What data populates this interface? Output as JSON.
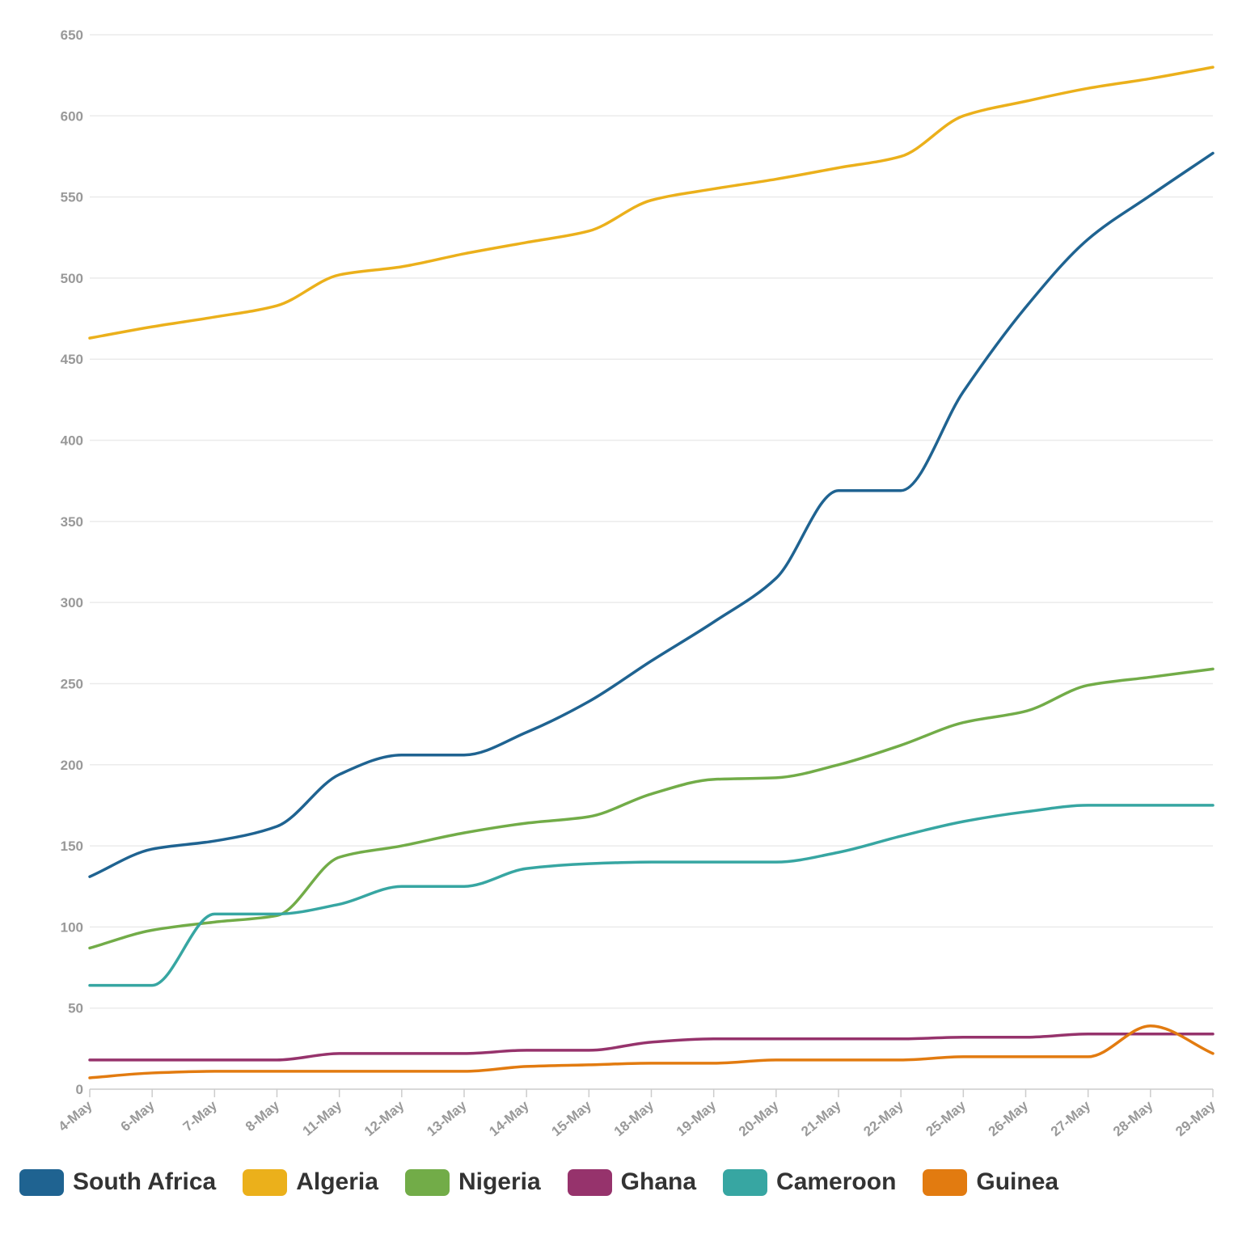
{
  "chart_data": {
    "type": "line",
    "categories": [
      "4-May",
      "6-May",
      "7-May",
      "8-May",
      "11-May",
      "12-May",
      "13-May",
      "14-May",
      "15-May",
      "18-May",
      "19-May",
      "20-May",
      "21-May",
      "22-May",
      "25-May",
      "26-May",
      "27-May",
      "28-May",
      "29-May"
    ],
    "yticks": [
      0,
      50,
      100,
      150,
      200,
      250,
      300,
      350,
      400,
      450,
      500,
      550,
      600,
      650
    ],
    "ylim": [
      0,
      650
    ],
    "legend_position": "bottom",
    "grid": true,
    "series": [
      {
        "name": "South Africa",
        "color": "#1f6391",
        "values": [
          131,
          148,
          153,
          162,
          194,
          206,
          206,
          220,
          239,
          264,
          288,
          315,
          369,
          369,
          430,
          482,
          524,
          551,
          577
        ]
      },
      {
        "name": "Algeria",
        "color": "#ebb01b",
        "values": [
          463,
          470,
          476,
          483,
          502,
          507,
          515,
          522,
          529,
          548,
          555,
          561,
          568,
          575,
          600,
          609,
          617,
          623,
          630
        ]
      },
      {
        "name": "Nigeria",
        "color": "#72ac48",
        "values": [
          87,
          98,
          103,
          107,
          143,
          150,
          158,
          164,
          168,
          182,
          191,
          192,
          200,
          212,
          226,
          233,
          249,
          254,
          259
        ]
      },
      {
        "name": "Ghana",
        "color": "#96336c",
        "values": [
          18,
          18,
          18,
          18,
          22,
          22,
          22,
          24,
          24,
          29,
          31,
          31,
          31,
          31,
          32,
          32,
          34,
          34,
          34
        ]
      },
      {
        "name": "Cameroon",
        "color": "#37a6a2",
        "values": [
          64,
          64,
          108,
          108,
          114,
          125,
          125,
          136,
          139,
          140,
          140,
          140,
          146,
          156,
          165,
          171,
          175,
          175,
          175
        ]
      },
      {
        "name": "Guinea",
        "color": "#e27b10",
        "values": [
          7,
          10,
          11,
          11,
          11,
          11,
          11,
          14,
          15,
          16,
          16,
          18,
          18,
          18,
          20,
          20,
          20,
          39,
          22
        ]
      }
    ]
  }
}
